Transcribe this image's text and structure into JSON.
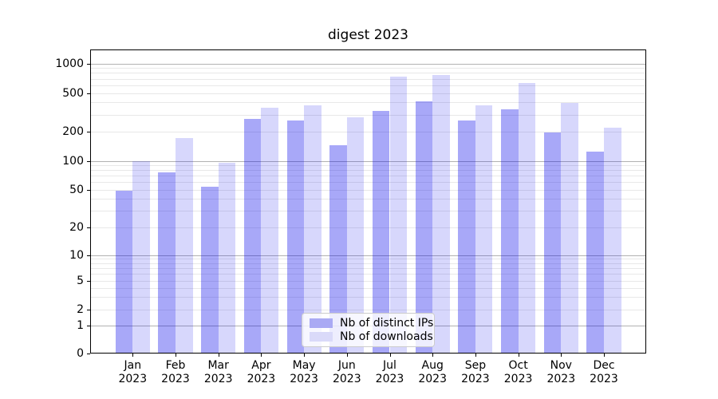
{
  "title": "digest 2023",
  "chart_data": {
    "type": "bar",
    "title": "digest 2023",
    "categories": [
      "Jan 2023",
      "Feb 2023",
      "Mar 2023",
      "Apr 2023",
      "May 2023",
      "Jun 2023",
      "Jul 2023",
      "Aug 2023",
      "Sep 2023",
      "Oct 2023",
      "Nov 2023",
      "Dec 2023"
    ],
    "series": [
      {
        "name": "Nb of distinct IPs",
        "color": "rgba(0,0,235,0.34)",
        "legend_color": "#aaaaf4",
        "values": [
          48,
          74,
          52,
          265,
          255,
          142,
          322,
          400,
          255,
          335,
          192,
          122
        ]
      },
      {
        "name": "Nb of downloads",
        "color": "rgba(0,0,235,0.155)",
        "legend_color": "#dadaf9",
        "values": [
          97,
          170,
          93,
          345,
          365,
          277,
          720,
          750,
          370,
          620,
          390,
          215
        ]
      }
    ],
    "xlabel": "",
    "ylabel": "",
    "yscale": "symlog",
    "y_ticks": [
      0,
      1,
      2,
      5,
      10,
      20,
      50,
      100,
      200,
      500,
      1000
    ],
    "ylim": [
      0,
      1400
    ],
    "grid": true,
    "grid_major_color": "#b2b2b2",
    "grid_minor_color": "#e8e8e8",
    "legend_position": "lower center"
  },
  "legend": {
    "items": [
      {
        "label": "Nb of distinct IPs"
      },
      {
        "label": "Nb of downloads"
      }
    ]
  }
}
